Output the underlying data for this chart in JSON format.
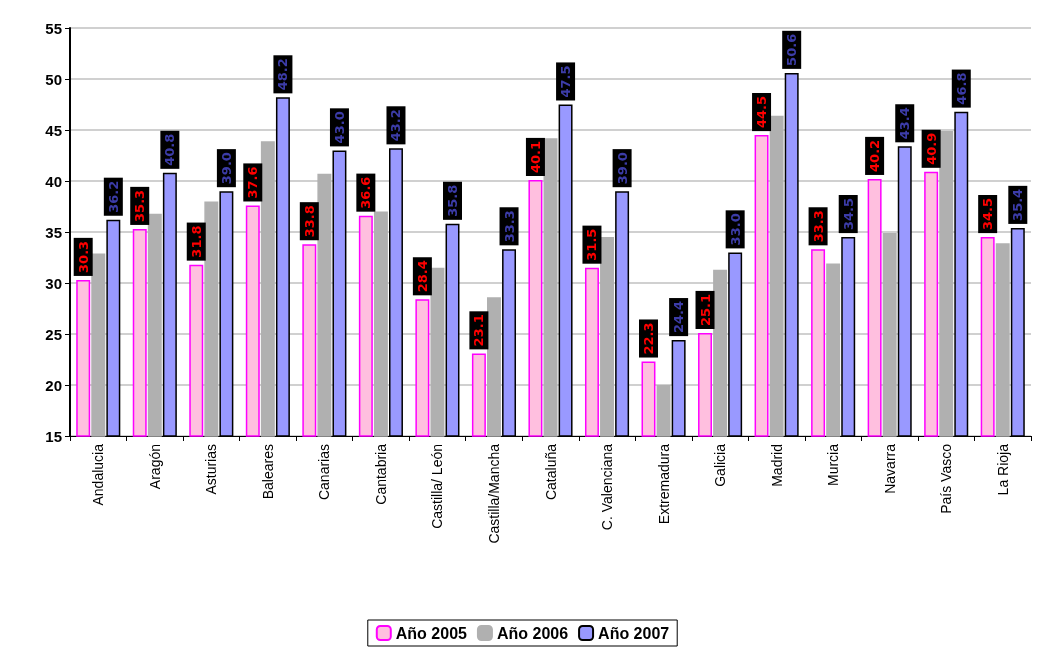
{
  "chart_data": {
    "type": "bar",
    "categories": [
      "Andalucia",
      "Aragón",
      "Asturias",
      "Baleares",
      "Canarias",
      "Cantabria",
      "Castilla/ León",
      "Castilla/Mancha",
      "Cataluña",
      "C. Valenciana",
      "Extremadura",
      "Galicia",
      "Madrid",
      "Murcia",
      "Navarra",
      "País Vasco",
      "La Rioja"
    ],
    "series": [
      {
        "name": "Año 2005",
        "color": "#ffbfdf",
        "values": [
          30.3,
          35.3,
          31.8,
          37.6,
          33.8,
          36.6,
          28.4,
          23.1,
          40.1,
          31.5,
          22.3,
          25.1,
          44.5,
          33.3,
          40.2,
          40.9,
          34.5
        ],
        "value_labels": [
          "30.3",
          "35.3",
          "31.8",
          "37.6",
          "33.8",
          "36.6",
          "28.4",
          "23.1",
          "40.1",
          "31.5",
          "22.3",
          "25.1",
          "44.5",
          "33.3",
          "40.2",
          "40.9",
          "34.5"
        ]
      },
      {
        "name": "Año 2006",
        "color": "#b0b0b0",
        "values": [
          32.9,
          36.8,
          38.0,
          43.9,
          40.7,
          37.0,
          31.5,
          28.6,
          44.2,
          34.5,
          20.0,
          31.3,
          46.4,
          31.9,
          34.9,
          44.9,
          33.9
        ]
      },
      {
        "name": "Año 2007",
        "color": "#9999ff",
        "values": [
          36.2,
          40.8,
          39.0,
          48.2,
          43.0,
          43.2,
          35.8,
          33.3,
          47.5,
          39.0,
          24.4,
          33.0,
          50.6,
          34.5,
          43.4,
          46.8,
          35.4
        ],
        "value_labels": [
          "36.2",
          "40.8",
          "39.0",
          "48.2",
          "43.0",
          "43.2",
          "35.8",
          "33.3",
          "47.5",
          "39.0",
          "24.4",
          "33.0",
          "50.6",
          "34.5",
          "43.4",
          "46.8",
          "35.4"
        ]
      }
    ],
    "ylim": [
      15,
      55
    ],
    "yticks": [
      15,
      20,
      25,
      30,
      35,
      40,
      45,
      50,
      55
    ],
    "grid": "y",
    "legend": "bottom"
  }
}
